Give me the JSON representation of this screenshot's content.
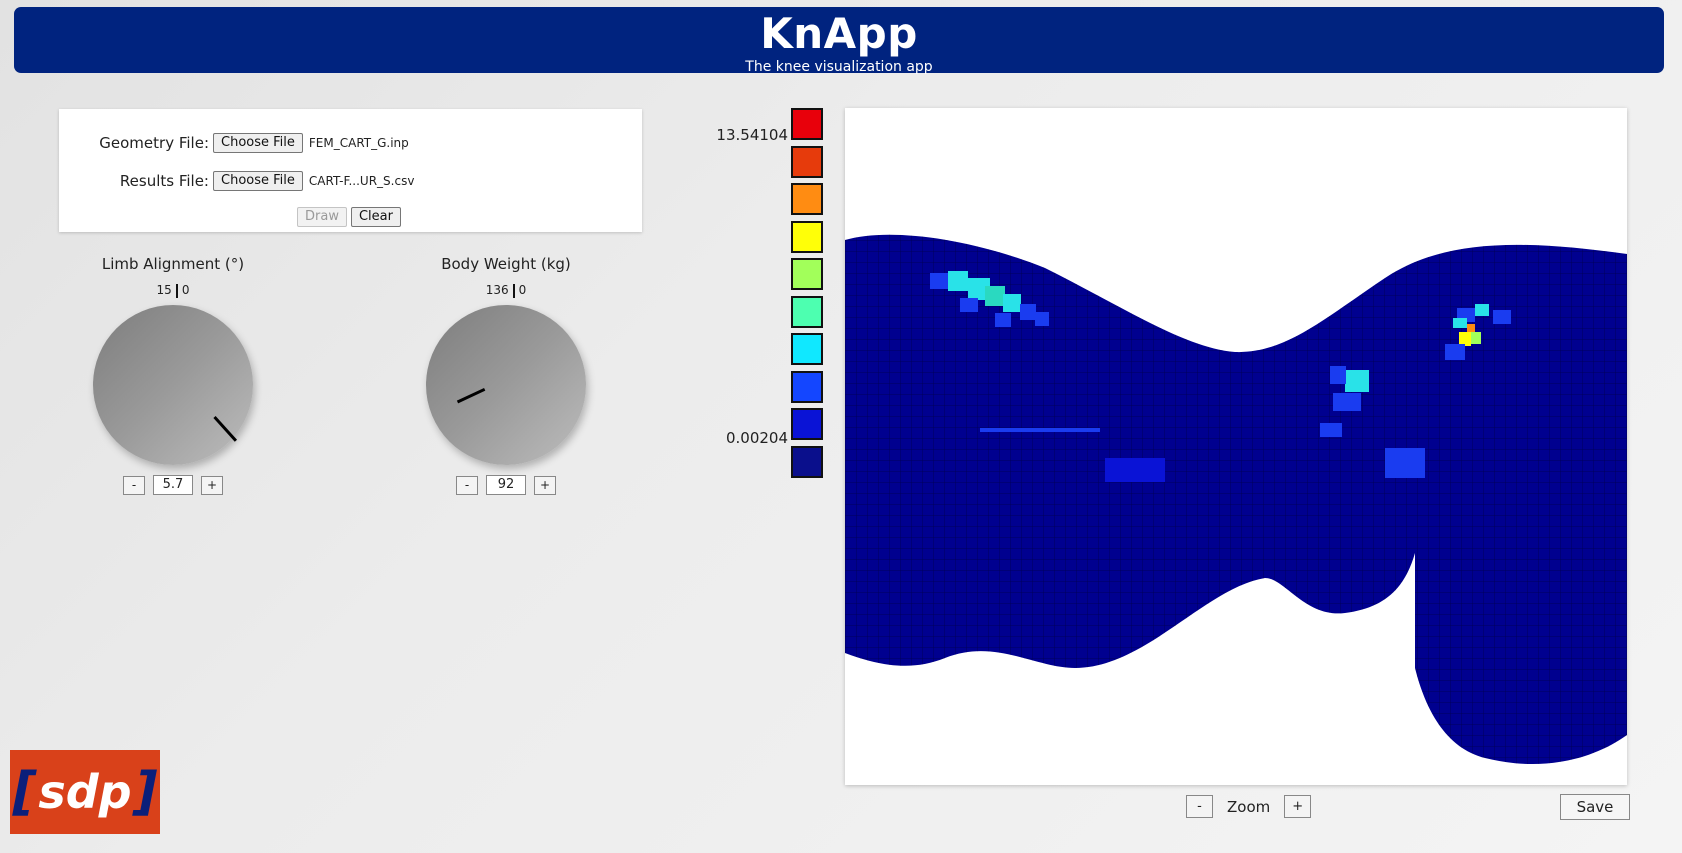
{
  "header": {
    "title": "KnApp",
    "subtitle": "The knee visualization app"
  },
  "files": {
    "geometry_label": "Geometry File:",
    "geometry_button": "Choose File",
    "geometry_name": "FEM_CART_G.inp",
    "results_label": "Results File:",
    "results_button": "Choose File",
    "results_name": "CART-F...UR_S.csv",
    "draw_label": "Draw",
    "clear_label": "Clear"
  },
  "limb": {
    "title": "Limb Alignment (°)",
    "scale_left": "15",
    "scale_right": "0",
    "value": "5.7",
    "minus": "-",
    "plus": "+"
  },
  "weight": {
    "title": "Body Weight (kg)",
    "scale_left": "136",
    "scale_right": "0",
    "value": "92",
    "minus": "-",
    "plus": "+"
  },
  "legend": {
    "max": "13.54104",
    "min": "0.00204",
    "colors": [
      "#e8000b",
      "#e63b0c",
      "#ff8c12",
      "#ffff08",
      "#a2ff5a",
      "#4dffb0",
      "#10e8ff",
      "#1446ff",
      "#0a13d6",
      "#0a0f8c"
    ]
  },
  "viewer": {
    "mesh_color": "#00008f",
    "hotspot_cyan": "#29e2e8",
    "hotspot_blue": "#1a3cf0"
  },
  "zoom": {
    "label": "Zoom",
    "minus": "-",
    "plus": "+"
  },
  "save_label": "Save",
  "logo": {
    "left_bracket": "[",
    "text": "sdp",
    "right_bracket": "]"
  }
}
